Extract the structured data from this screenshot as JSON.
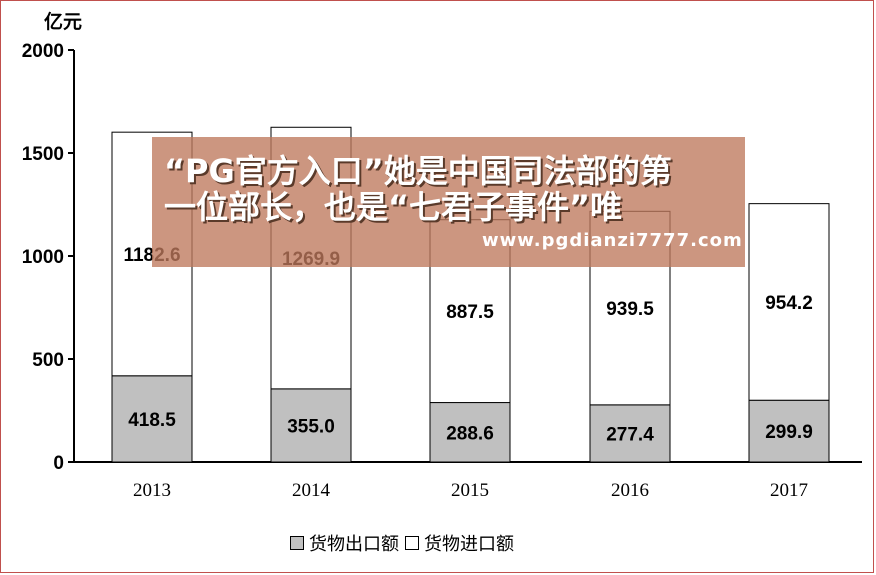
{
  "chart_data": {
    "type": "bar",
    "stacked": true,
    "unit_label": "亿元",
    "categories": [
      "2013",
      "2014",
      "2015",
      "2016",
      "2017"
    ],
    "series": [
      {
        "name": "货物出口额",
        "values": [
          418.5,
          355.0,
          288.6,
          277.4,
          299.9
        ],
        "color": "#c0c0c0"
      },
      {
        "name": "货物进口额",
        "values": [
          1182.6,
          1269.9,
          887.5,
          939.5,
          954.2
        ],
        "color": "#ffffff"
      }
    ],
    "ylim": [
      0,
      2000
    ],
    "yticks": [
      "0",
      "500",
      "1000",
      "1500",
      "2000"
    ],
    "data_labels": [
      [
        "418.5",
        "355.0",
        "288.6",
        "277.4",
        "299.9"
      ],
      [
        "1182.6",
        "1269.9",
        "887.5",
        "939.5",
        "954.2"
      ]
    ],
    "grid": false,
    "legend_position": "bottom"
  },
  "overlay": {
    "line1": "“PG官方入口”她是中国司法部的第",
    "line2": "一位部长，也是“七君子事件”唯",
    "url": "www.pgdianzi7777.com"
  }
}
